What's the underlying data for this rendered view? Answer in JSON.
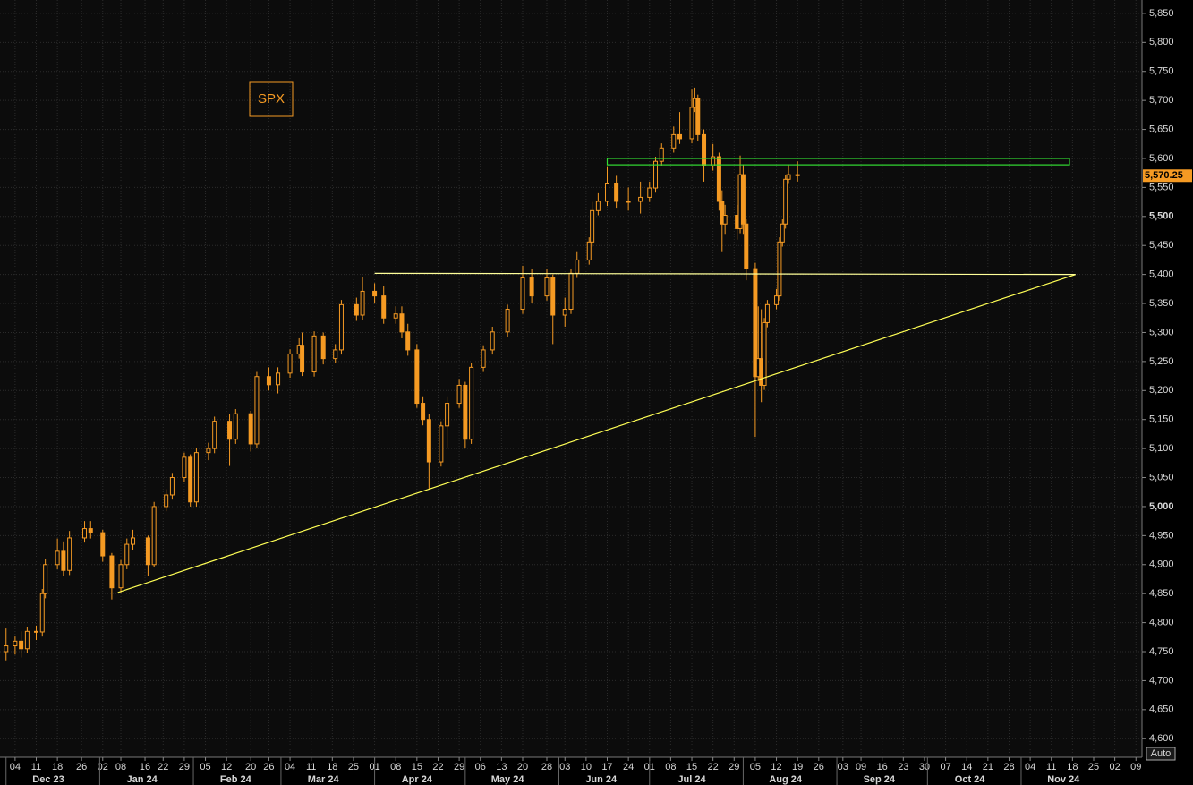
{
  "chart_data": {
    "type": "candlestick",
    "title": "SPX",
    "color": "#f59a23",
    "x": [
      "2023-12-01",
      "2023-12-04",
      "2023-12-06",
      "2023-12-08",
      "2023-12-11",
      "2023-12-13",
      "2023-12-14",
      "2023-12-18",
      "2023-12-20",
      "2023-12-22",
      "2023-12-27",
      "2023-12-29",
      "2024-01-02",
      "2024-01-05",
      "2024-01-08",
      "2024-01-10",
      "2024-01-12",
      "2024-01-17",
      "2024-01-19",
      "2024-01-23",
      "2024-01-25",
      "2024-01-29",
      "2024-01-31",
      "2024-02-02",
      "2024-02-06",
      "2024-02-08",
      "2024-02-13",
      "2024-02-15",
      "2024-02-20",
      "2024-02-22",
      "2024-02-26",
      "2024-02-29",
      "2024-03-04",
      "2024-03-07",
      "2024-03-08",
      "2024-03-12",
      "2024-03-15",
      "2024-03-19",
      "2024-03-21",
      "2024-03-26",
      "2024-03-28",
      "2024-04-01",
      "2024-04-04",
      "2024-04-08",
      "2024-04-10",
      "2024-04-12",
      "2024-04-15",
      "2024-04-17",
      "2024-04-19",
      "2024-04-23",
      "2024-04-25",
      "2024-04-29",
      "2024-05-01",
      "2024-05-03",
      "2024-05-07",
      "2024-05-10",
      "2024-05-15",
      "2024-05-20",
      "2024-05-23",
      "2024-05-28",
      "2024-05-30",
      "2024-06-03",
      "2024-06-05",
      "2024-06-07",
      "2024-06-11",
      "2024-06-12",
      "2024-06-14",
      "2024-06-17",
      "2024-06-20",
      "2024-06-24",
      "2024-06-28",
      "2024-07-01",
      "2024-07-03",
      "2024-07-05",
      "2024-07-09",
      "2024-07-11",
      "2024-07-15",
      "2024-07-16",
      "2024-07-17",
      "2024-07-19",
      "2024-07-22",
      "2024-07-24",
      "2024-07-25",
      "2024-07-26",
      "2024-07-30",
      "2024-07-31",
      "2024-08-01",
      "2024-08-02",
      "2024-08-05",
      "2024-08-06",
      "2024-08-07",
      "2024-08-08",
      "2024-08-09",
      "2024-08-12",
      "2024-08-13",
      "2024-08-14",
      "2024-08-15",
      "2024-08-16",
      "2024-08-19"
    ],
    "open": [
      4750,
      4760,
      4768,
      4755,
      4785,
      4784,
      4850,
      4900,
      4923,
      4890,
      4946,
      4962,
      4955,
      4915,
      4860,
      4900,
      4935,
      4946,
      4900,
      5000,
      5020,
      5050,
      5085,
      5008,
      5093,
      5100,
      5147,
      5116,
      5160,
      5108,
      5224,
      5210,
      5230,
      5263,
      5278,
      5232,
      5294,
      5255,
      5270,
      5348,
      5330,
      5371,
      5363,
      5325,
      5332,
      5301,
      5270,
      5178,
      5150,
      5077,
      5139,
      5178,
      5209,
      5116,
      5240,
      5270,
      5301,
      5340,
      5394,
      5363,
      5394,
      5330,
      5340,
      5402,
      5425,
      5456,
      5510,
      5526,
      5556,
      5526,
      5526,
      5533,
      5549,
      5595,
      5618,
      5641,
      5634,
      5688,
      5703,
      5641,
      5587,
      5603,
      5526,
      5487,
      5502,
      5479,
      5572,
      5487,
      5410,
      5224,
      5255,
      5209,
      5317,
      5348,
      5363,
      5456,
      5487,
      5564,
      5572
    ],
    "high": [
      4790,
      4776,
      4785,
      4793,
      4795,
      4858,
      4910,
      4945,
      4940,
      4958,
      4975,
      4975,
      4960,
      4920,
      4908,
      4945,
      4960,
      4950,
      5008,
      5030,
      5058,
      5093,
      5090,
      5101,
      5110,
      5155,
      5160,
      5168,
      5165,
      5232,
      5240,
      5240,
      5271,
      5290,
      5300,
      5302,
      5300,
      5280,
      5356,
      5360,
      5395,
      5385,
      5380,
      5345,
      5345,
      5315,
      5280,
      5190,
      5160,
      5147,
      5190,
      5220,
      5215,
      5248,
      5278,
      5310,
      5348,
      5415,
      5410,
      5410,
      5400,
      5360,
      5410,
      5440,
      5464,
      5525,
      5540,
      5585,
      5570,
      5550,
      5560,
      5560,
      5603,
      5626,
      5655,
      5680,
      5720,
      5722,
      5710,
      5650,
      5625,
      5610,
      5545,
      5520,
      5520,
      5605,
      5590,
      5495,
      5420,
      5345,
      5340,
      5325,
      5356,
      5375,
      5464,
      5495,
      5572,
      5590,
      5595
    ],
    "low": [
      4735,
      4745,
      4740,
      4747,
      4770,
      4776,
      4842,
      4892,
      4880,
      4882,
      4938,
      4945,
      4905,
      4840,
      4852,
      4892,
      4925,
      4880,
      4895,
      4992,
      5012,
      5042,
      5000,
      5000,
      5080,
      5092,
      5070,
      5108,
      5095,
      5100,
      5200,
      5195,
      5222,
      5255,
      5225,
      5224,
      5245,
      5247,
      5262,
      5320,
      5322,
      5350,
      5315,
      5315,
      5290,
      5260,
      5170,
      5140,
      5030,
      5069,
      5100,
      5170,
      5100,
      5108,
      5232,
      5262,
      5293,
      5332,
      5350,
      5355,
      5280,
      5310,
      5332,
      5394,
      5417,
      5448,
      5502,
      5518,
      5515,
      5510,
      5505,
      5525,
      5541,
      5587,
      5610,
      5625,
      5626,
      5680,
      5630,
      5560,
      5579,
      5510,
      5440,
      5470,
      5460,
      5471,
      5470,
      5390,
      5120,
      5216,
      5180,
      5201,
      5309,
      5340,
      5355,
      5448,
      5479,
      5556,
      5560
    ],
    "close": [
      4760,
      4768,
      4755,
      4785,
      4784,
      4850,
      4900,
      4923,
      4890,
      4946,
      4962,
      4955,
      4915,
      4860,
      4900,
      4935,
      4946,
      4900,
      5000,
      5020,
      5050,
      5085,
      5008,
      5093,
      5100,
      5147,
      5116,
      5160,
      5108,
      5224,
      5210,
      5230,
      5263,
      5278,
      5232,
      5294,
      5255,
      5270,
      5348,
      5330,
      5371,
      5363,
      5325,
      5332,
      5301,
      5270,
      5178,
      5150,
      5077,
      5139,
      5178,
      5209,
      5116,
      5240,
      5270,
      5301,
      5340,
      5394,
      5363,
      5394,
      5330,
      5340,
      5402,
      5425,
      5456,
      5510,
      5526,
      5556,
      5526,
      5526,
      5533,
      5549,
      5595,
      5618,
      5641,
      5634,
      5688,
      5703,
      5641,
      5587,
      5603,
      5526,
      5487,
      5502,
      5479,
      5572,
      5487,
      5410,
      5224,
      5255,
      5209,
      5317,
      5348,
      5363,
      5456,
      5487,
      5564,
      5572,
      5570.25
    ],
    "last_price": {
      "value": 5570.25,
      "label": "5,570.25"
    },
    "lines": [
      {
        "x": [
          "2024-01-07",
          "2024-11-19"
        ],
        "y": [
          4852,
          5400
        ],
        "color": "#ffff55"
      },
      {
        "x": [
          "2024-04-01",
          "2024-11-19"
        ],
        "y": [
          5402,
          5400
        ],
        "color": "#ffff99"
      }
    ],
    "zones": [
      {
        "x": [
          "2024-06-17",
          "2024-11-17"
        ],
        "y": [
          5589,
          5600
        ],
        "color": "#33dd33"
      }
    ],
    "xlim": [
      "2023-11-29",
      "2024-12-11"
    ],
    "ylim": [
      4568,
      5873
    ],
    "yticks": [
      {
        "value": 4600,
        "label": "4,600"
      },
      {
        "value": 4650,
        "label": "4,650"
      },
      {
        "value": 4700,
        "label": "4,700"
      },
      {
        "value": 4750,
        "label": "4,750"
      },
      {
        "value": 4800,
        "label": "4,800"
      },
      {
        "value": 4850,
        "label": "4,850"
      },
      {
        "value": 4900,
        "label": "4,900"
      },
      {
        "value": 4950,
        "label": "4,950"
      },
      {
        "value": 5000,
        "label": "5,000"
      },
      {
        "value": 5050,
        "label": "5,050"
      },
      {
        "value": 5100,
        "label": "5,100"
      },
      {
        "value": 5150,
        "label": "5,150"
      },
      {
        "value": 5200,
        "label": "5,200"
      },
      {
        "value": 5250,
        "label": "5,250"
      },
      {
        "value": 5300,
        "label": "5,300"
      },
      {
        "value": 5350,
        "label": "5,350"
      },
      {
        "value": 5400,
        "label": "5,400"
      },
      {
        "value": 5450,
        "label": "5,450"
      },
      {
        "value": 5500,
        "label": "5,500"
      },
      {
        "value": 5550,
        "label": "5,550"
      },
      {
        "value": 5600,
        "label": "5,600"
      },
      {
        "value": 5650,
        "label": "5,650"
      },
      {
        "value": 5700,
        "label": "5,700"
      },
      {
        "value": 5750,
        "label": "5,750"
      },
      {
        "value": 5800,
        "label": "5,800"
      },
      {
        "value": 5850,
        "label": "5,850"
      }
    ],
    "xticks": [
      {
        "value": "2023-12-04",
        "label": "04"
      },
      {
        "value": "2023-12-11",
        "label": "11"
      },
      {
        "value": "2023-12-18",
        "label": "18"
      },
      {
        "value": "2023-12-26",
        "label": "26"
      },
      {
        "value": "2024-01-02",
        "label": "02"
      },
      {
        "value": "2024-01-08",
        "label": "08"
      },
      {
        "value": "2024-01-16",
        "label": "16"
      },
      {
        "value": "2024-01-22",
        "label": "22"
      },
      {
        "value": "2024-01-29",
        "label": "29"
      },
      {
        "value": "2024-02-05",
        "label": "05"
      },
      {
        "value": "2024-02-12",
        "label": "12"
      },
      {
        "value": "2024-02-20",
        "label": "20"
      },
      {
        "value": "2024-02-26",
        "label": "26"
      },
      {
        "value": "2024-03-04",
        "label": "04"
      },
      {
        "value": "2024-03-11",
        "label": "11"
      },
      {
        "value": "2024-03-18",
        "label": "18"
      },
      {
        "value": "2024-03-25",
        "label": "25"
      },
      {
        "value": "2024-04-01",
        "label": "01"
      },
      {
        "value": "2024-04-08",
        "label": "08"
      },
      {
        "value": "2024-04-15",
        "label": "15"
      },
      {
        "value": "2024-04-22",
        "label": "22"
      },
      {
        "value": "2024-04-29",
        "label": "29"
      },
      {
        "value": "2024-05-06",
        "label": "06"
      },
      {
        "value": "2024-05-13",
        "label": "13"
      },
      {
        "value": "2024-05-20",
        "label": "20"
      },
      {
        "value": "2024-05-28",
        "label": "28"
      },
      {
        "value": "2024-06-03",
        "label": "03"
      },
      {
        "value": "2024-06-10",
        "label": "10"
      },
      {
        "value": "2024-06-17",
        "label": "17"
      },
      {
        "value": "2024-06-24",
        "label": "24"
      },
      {
        "value": "2024-07-01",
        "label": "01"
      },
      {
        "value": "2024-07-08",
        "label": "08"
      },
      {
        "value": "2024-07-15",
        "label": "15"
      },
      {
        "value": "2024-07-22",
        "label": "22"
      },
      {
        "value": "2024-07-29",
        "label": "29"
      },
      {
        "value": "2024-08-05",
        "label": "05"
      },
      {
        "value": "2024-08-12",
        "label": "12"
      },
      {
        "value": "2024-08-19",
        "label": "19"
      },
      {
        "value": "2024-08-26",
        "label": "26"
      },
      {
        "value": "2024-09-03",
        "label": "03"
      },
      {
        "value": "2024-09-09",
        "label": "09"
      },
      {
        "value": "2024-09-16",
        "label": "16"
      },
      {
        "value": "2024-09-23",
        "label": "23"
      },
      {
        "value": "2024-09-30",
        "label": "30"
      },
      {
        "value": "2024-10-07",
        "label": "07"
      },
      {
        "value": "2024-10-14",
        "label": "14"
      },
      {
        "value": "2024-10-21",
        "label": "21"
      },
      {
        "value": "2024-10-28",
        "label": "28"
      },
      {
        "value": "2024-11-04",
        "label": "04"
      },
      {
        "value": "2024-11-11",
        "label": "11"
      },
      {
        "value": "2024-11-18",
        "label": "18"
      },
      {
        "value": "2024-11-25",
        "label": "25"
      },
      {
        "value": "2024-12-02",
        "label": "02"
      },
      {
        "value": "2024-12-09",
        "label": "09"
      }
    ],
    "months": [
      {
        "value": "2023-12",
        "label": "Dec 23"
      },
      {
        "value": "2024-01",
        "label": "Jan 24"
      },
      {
        "value": "2024-02",
        "label": "Feb 24"
      },
      {
        "value": "2024-03",
        "label": "Mar 24"
      },
      {
        "value": "2024-04",
        "label": "Apr 24"
      },
      {
        "value": "2024-05",
        "label": "May 24"
      },
      {
        "value": "2024-06",
        "label": "Jun 24"
      },
      {
        "value": "2024-07",
        "label": "Jul 24"
      },
      {
        "value": "2024-08",
        "label": "Aug 24"
      },
      {
        "value": "2024-09",
        "label": "Sep 24"
      },
      {
        "value": "2024-10",
        "label": "Oct 24"
      },
      {
        "value": "2024-11",
        "label": "Nov 24"
      }
    ],
    "grid": true,
    "scale_button": "Auto"
  }
}
